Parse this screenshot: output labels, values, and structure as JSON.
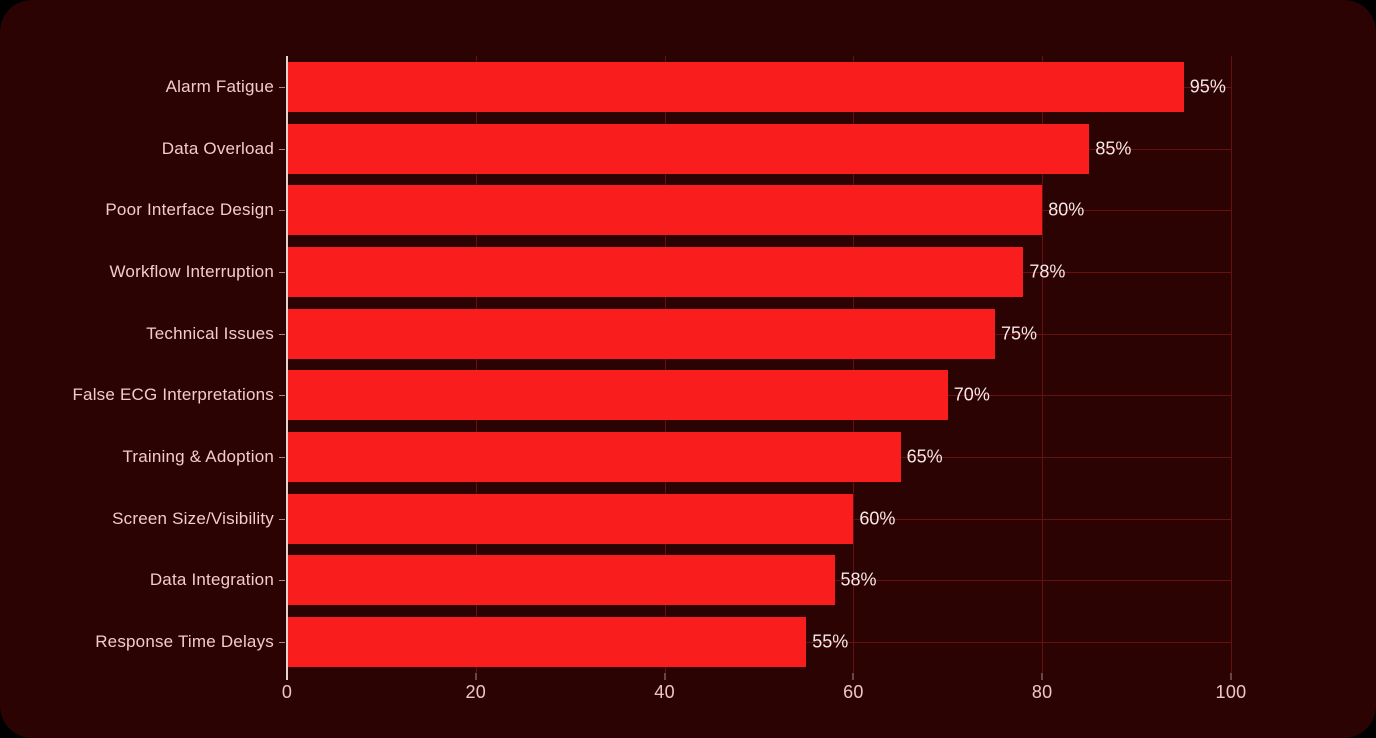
{
  "chart_data": {
    "type": "bar",
    "orientation": "horizontal",
    "categories": [
      "Alarm Fatigue",
      "Data Overload",
      "Poor Interface Design",
      "Workflow Interruption",
      "Technical Issues",
      "False ECG Interpretations",
      "Training & Adoption",
      "Screen Size/Visibility",
      "Data Integration",
      "Response Time Delays"
    ],
    "values": [
      95,
      85,
      80,
      78,
      75,
      70,
      65,
      60,
      58,
      55
    ],
    "value_labels": [
      "95%",
      "85%",
      "80%",
      "78%",
      "75%",
      "70%",
      "65%",
      "60%",
      "58%",
      "55%"
    ],
    "x_ticks": [
      0,
      20,
      40,
      60,
      80,
      100
    ],
    "x_tick_labels": [
      "0",
      "20",
      "40",
      "60",
      "80",
      "100"
    ],
    "xlim": [
      0,
      100
    ],
    "grid": true,
    "legend": false,
    "title": ""
  },
  "colors": {
    "page_background": "#000000",
    "card_background": "#2b0303",
    "bar_fill": "#fa1d1d",
    "axis_line": "#e9d2d2",
    "gridline": "#661010",
    "category_label": "#f4caca",
    "value_label": "#f7e7e7",
    "tick_label": "#f2c5c5",
    "tick_mark": "#b5827f"
  }
}
